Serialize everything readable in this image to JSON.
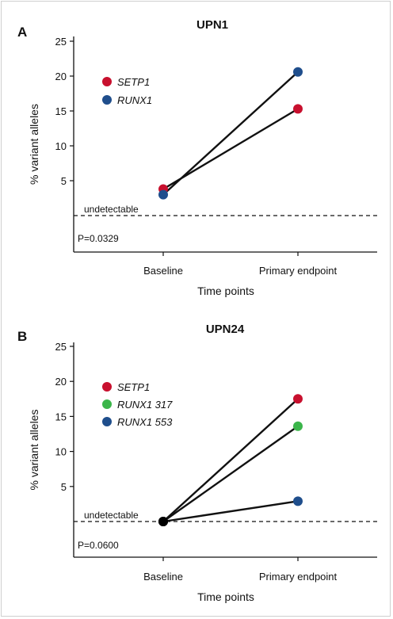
{
  "chart_data": [
    {
      "type": "line",
      "panel": "A",
      "title": "UPN1",
      "xlabel": "Time points",
      "ylabel": "% variant alleles",
      "categories": [
        "Baseline",
        "Primary endpoint"
      ],
      "yticks": [
        "5",
        "10",
        "15",
        "20",
        "25"
      ],
      "ylim": [
        0,
        25
      ],
      "undetectable_label": "undetectable",
      "pvalue": "P=0.0329",
      "legend_position": "top-left",
      "series": [
        {
          "name": "SETP1",
          "color": "#c8102e",
          "values": [
            3.8,
            15.3
          ]
        },
        {
          "name": "RUNX1",
          "color": "#1f4e8c",
          "values": [
            3.0,
            20.6
          ]
        }
      ]
    },
    {
      "type": "line",
      "panel": "B",
      "title": "UPN24",
      "xlabel": "Time points",
      "ylabel": "% variant alleles",
      "categories": [
        "Baseline",
        "Primary endpoint"
      ],
      "yticks": [
        "5",
        "10",
        "15",
        "20",
        "25"
      ],
      "ylim": [
        0,
        25
      ],
      "undetectable_label": "undetectable",
      "pvalue": "P=0.0600",
      "legend_position": "top-left",
      "baseline_marker_color": "#000000",
      "series": [
        {
          "name": "SETP1",
          "color": "#c8102e",
          "values": [
            0,
            17.5
          ]
        },
        {
          "name": "RUNX1 317",
          "color": "#3bb54a",
          "values": [
            0,
            13.6
          ]
        },
        {
          "name": "RUNX1 553",
          "color": "#1f4e8c",
          "values": [
            0,
            2.9
          ]
        }
      ]
    }
  ]
}
